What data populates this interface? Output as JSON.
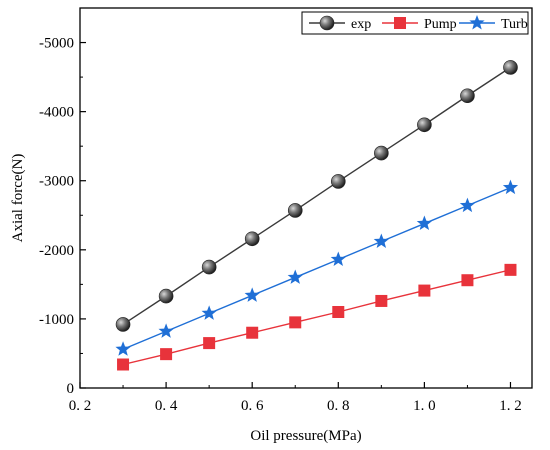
{
  "chart_data": {
    "type": "line",
    "xlabel": "Oil pressure(MPa)",
    "ylabel": "Axial force(N)",
    "xlim": [
      0.2,
      1.25
    ],
    "ylim": [
      0,
      -5500
    ],
    "x_ticks": [
      0.2,
      0.4,
      0.6,
      0.8,
      1.0,
      1.2
    ],
    "x_tick_labels": [
      "0. 2",
      "0. 4",
      "0. 6",
      "0. 8",
      "1. 0",
      "1. 2"
    ],
    "y_ticks": [
      0,
      -1000,
      -2000,
      -3000,
      -4000,
      -5000
    ],
    "y_tick_labels": [
      "0",
      "-1000",
      "-2000",
      "-3000",
      "-4000",
      "-5000"
    ],
    "grid": false,
    "legend_position": "top-right",
    "x": [
      0.3,
      0.4,
      0.5,
      0.6,
      0.7,
      0.8,
      0.9,
      1.0,
      1.1,
      1.2
    ],
    "series": [
      {
        "name": "exp",
        "marker": "sphere",
        "color": "#3a3a3a",
        "values": [
          -920,
          -1330,
          -1750,
          -2160,
          -2570,
          -2990,
          -3400,
          -3810,
          -4230,
          -4640
        ]
      },
      {
        "name": "Pump",
        "marker": "square",
        "color": "#e8333b",
        "values": [
          -340,
          -490,
          -650,
          -800,
          -950,
          -1100,
          -1260,
          -1410,
          -1560,
          -1710
        ]
      },
      {
        "name": "Turb",
        "marker": "star",
        "color": "#1f6fd6",
        "values": [
          -560,
          -820,
          -1080,
          -1340,
          -1600,
          -1860,
          -2120,
          -2380,
          -2640,
          -2900
        ]
      }
    ]
  }
}
